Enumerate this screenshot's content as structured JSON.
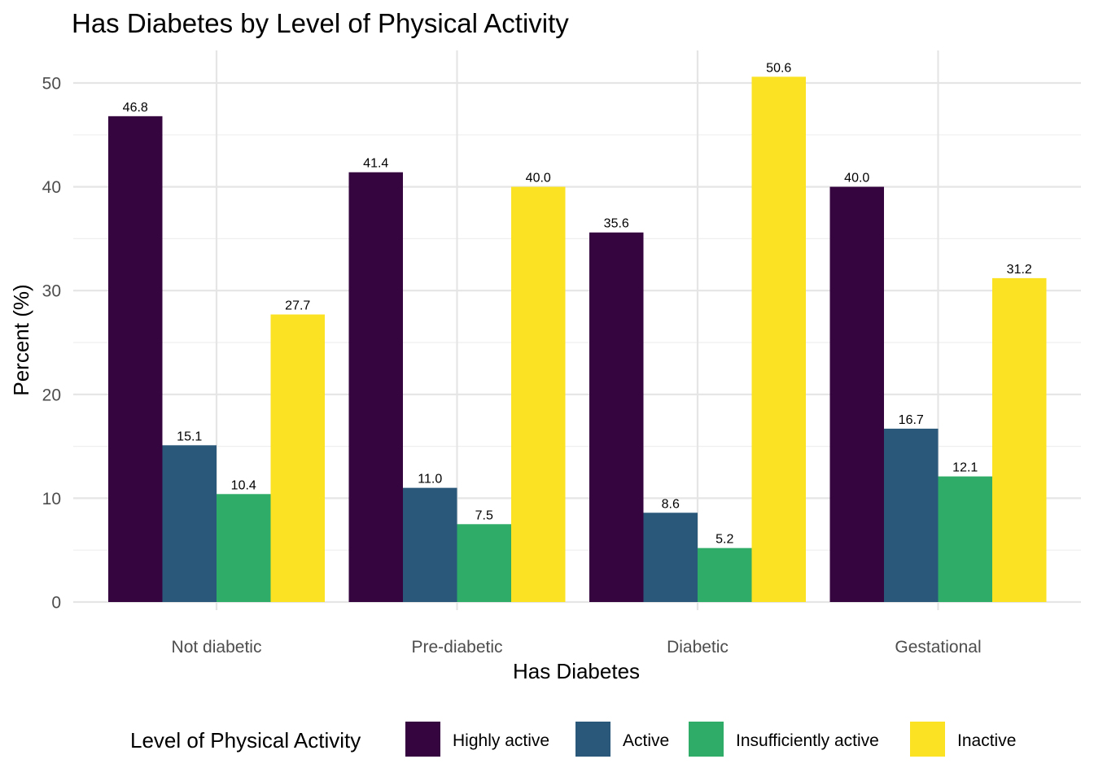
{
  "chart_data": {
    "type": "bar",
    "title": "Has Diabetes by Level of Physical Activity",
    "xlabel": "Has Diabetes",
    "ylabel": "Percent (%)",
    "categories": [
      "Not diabetic",
      "Pre-diabetic",
      "Diabetic",
      "Gestational"
    ],
    "yticks": [
      "0",
      "10",
      "20",
      "30",
      "40",
      "50"
    ],
    "ylim": [
      0,
      53
    ],
    "grid": true,
    "legend_title": "Level of Physical Activity",
    "legend_position": "bottom",
    "series": [
      {
        "name": "Highly active",
        "color": "#350540",
        "values": [
          46.8,
          41.4,
          35.6,
          40.0
        ],
        "labels": [
          "46.8",
          "41.4",
          "35.6",
          "40.0"
        ]
      },
      {
        "name": "Active",
        "color": "#29587b",
        "values": [
          15.1,
          11.0,
          8.6,
          16.7
        ],
        "labels": [
          "15.1",
          "11.0",
          "8.6",
          "16.7"
        ]
      },
      {
        "name": "Insufficiently active",
        "color": "#2fad68",
        "values": [
          10.4,
          7.5,
          5.2,
          12.1
        ],
        "labels": [
          "10.4",
          "7.5",
          "5.2",
          "12.1"
        ]
      },
      {
        "name": "Inactive",
        "color": "#fbe222",
        "values": [
          27.7,
          40.0,
          50.6,
          31.2
        ],
        "labels": [
          "27.7",
          "40.0",
          "50.6",
          "31.2"
        ]
      }
    ]
  }
}
